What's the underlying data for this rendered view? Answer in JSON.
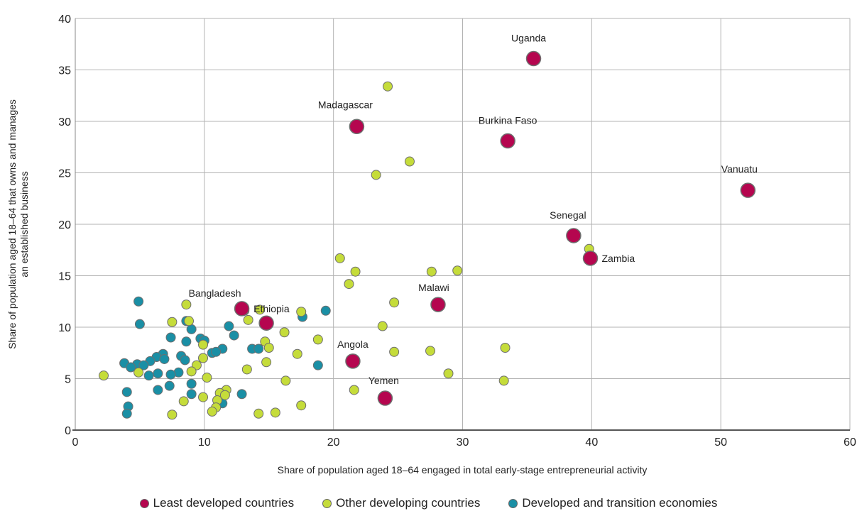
{
  "chart_data": {
    "type": "scatter",
    "xlabel": "Share of population aged 18–64 engaged in total early-stage entrepreneurial activity",
    "ylabel": [
      "Share of population aged 18–64 that owns and manages",
      "an established business"
    ],
    "xlim": [
      0,
      60
    ],
    "ylim": [
      0,
      40
    ],
    "xticks": [
      0,
      10,
      20,
      30,
      40,
      50,
      60
    ],
    "yticks": [
      0,
      5,
      10,
      15,
      20,
      25,
      30,
      35,
      40
    ],
    "grid": true,
    "legend_position": "bottom",
    "series": [
      {
        "name": "Least developed countries",
        "color": "#b5064f",
        "points": [
          {
            "x": 35.5,
            "y": 36.1,
            "label": "Uganda"
          },
          {
            "x": 21.8,
            "y": 29.5,
            "label": "Madagascar"
          },
          {
            "x": 33.5,
            "y": 28.1,
            "label": "Burkina Faso"
          },
          {
            "x": 52.1,
            "y": 23.3,
            "label": "Vanuatu"
          },
          {
            "x": 38.6,
            "y": 18.9,
            "label": "Senegal"
          },
          {
            "x": 39.9,
            "y": 16.7,
            "label": "Zambia"
          },
          {
            "x": 28.1,
            "y": 12.2,
            "label": "Malawi"
          },
          {
            "x": 12.9,
            "y": 11.8,
            "label": "Bangladesh"
          },
          {
            "x": 14.8,
            "y": 10.4,
            "label": "Ethiopia"
          },
          {
            "x": 21.5,
            "y": 6.7,
            "label": "Angola"
          },
          {
            "x": 24.0,
            "y": 3.1,
            "label": "Yemen"
          }
        ]
      },
      {
        "name": "Other developing countries",
        "color": "#c5dc3a",
        "points": [
          {
            "x": 24.2,
            "y": 33.4
          },
          {
            "x": 25.9,
            "y": 26.1
          },
          {
            "x": 23.3,
            "y": 24.8
          },
          {
            "x": 39.8,
            "y": 17.6
          },
          {
            "x": 20.5,
            "y": 16.7
          },
          {
            "x": 21.7,
            "y": 15.4
          },
          {
            "x": 27.6,
            "y": 15.4
          },
          {
            "x": 29.6,
            "y": 15.5
          },
          {
            "x": 21.2,
            "y": 14.2
          },
          {
            "x": 24.7,
            "y": 12.4
          },
          {
            "x": 8.6,
            "y": 12.2
          },
          {
            "x": 13.1,
            "y": 11.6
          },
          {
            "x": 14.3,
            "y": 11.7
          },
          {
            "x": 17.5,
            "y": 11.5
          },
          {
            "x": 7.5,
            "y": 10.5
          },
          {
            "x": 8.8,
            "y": 10.6
          },
          {
            "x": 13.4,
            "y": 10.7
          },
          {
            "x": 23.8,
            "y": 10.1
          },
          {
            "x": 16.2,
            "y": 9.5
          },
          {
            "x": 18.8,
            "y": 8.8
          },
          {
            "x": 9.9,
            "y": 8.3
          },
          {
            "x": 14.7,
            "y": 8.6
          },
          {
            "x": 15.0,
            "y": 8.0
          },
          {
            "x": 33.3,
            "y": 8.0
          },
          {
            "x": 24.7,
            "y": 7.6
          },
          {
            "x": 27.5,
            "y": 7.7
          },
          {
            "x": 17.2,
            "y": 7.4
          },
          {
            "x": 9.9,
            "y": 7.0
          },
          {
            "x": 14.8,
            "y": 6.6
          },
          {
            "x": 9.4,
            "y": 6.3
          },
          {
            "x": 2.2,
            "y": 5.3
          },
          {
            "x": 4.9,
            "y": 5.6
          },
          {
            "x": 9.0,
            "y": 5.7
          },
          {
            "x": 13.3,
            "y": 5.9
          },
          {
            "x": 28.9,
            "y": 5.5
          },
          {
            "x": 10.2,
            "y": 5.1
          },
          {
            "x": 16.3,
            "y": 4.8
          },
          {
            "x": 33.2,
            "y": 4.8
          },
          {
            "x": 11.7,
            "y": 3.9
          },
          {
            "x": 21.6,
            "y": 3.9
          },
          {
            "x": 11.2,
            "y": 3.6
          },
          {
            "x": 11.6,
            "y": 3.4
          },
          {
            "x": 9.9,
            "y": 3.2
          },
          {
            "x": 11.0,
            "y": 2.9
          },
          {
            "x": 8.4,
            "y": 2.8
          },
          {
            "x": 17.5,
            "y": 2.4
          },
          {
            "x": 10.9,
            "y": 2.2
          },
          {
            "x": 10.6,
            "y": 1.8
          },
          {
            "x": 15.5,
            "y": 1.7
          },
          {
            "x": 7.5,
            "y": 1.5
          },
          {
            "x": 14.2,
            "y": 1.6
          }
        ]
      },
      {
        "name": "Developed and transition economies",
        "color": "#1a8fa5",
        "points": [
          {
            "x": 4.9,
            "y": 12.5
          },
          {
            "x": 19.4,
            "y": 11.6
          },
          {
            "x": 17.6,
            "y": 11.0
          },
          {
            "x": 5.0,
            "y": 10.3
          },
          {
            "x": 11.9,
            "y": 10.1
          },
          {
            "x": 9.0,
            "y": 9.8
          },
          {
            "x": 8.6,
            "y": 10.6
          },
          {
            "x": 12.3,
            "y": 9.2
          },
          {
            "x": 7.4,
            "y": 9.0
          },
          {
            "x": 9.7,
            "y": 8.9
          },
          {
            "x": 10.0,
            "y": 8.7
          },
          {
            "x": 8.6,
            "y": 8.6
          },
          {
            "x": 11.4,
            "y": 7.9
          },
          {
            "x": 13.7,
            "y": 7.9
          },
          {
            "x": 14.2,
            "y": 7.9
          },
          {
            "x": 10.6,
            "y": 7.5
          },
          {
            "x": 10.9,
            "y": 7.6
          },
          {
            "x": 6.8,
            "y": 7.4
          },
          {
            "x": 8.2,
            "y": 7.2
          },
          {
            "x": 6.3,
            "y": 7.1
          },
          {
            "x": 6.9,
            "y": 6.9
          },
          {
            "x": 8.5,
            "y": 6.8
          },
          {
            "x": 5.8,
            "y": 6.7
          },
          {
            "x": 3.8,
            "y": 6.5
          },
          {
            "x": 4.8,
            "y": 6.4
          },
          {
            "x": 5.3,
            "y": 6.3
          },
          {
            "x": 4.3,
            "y": 6.1
          },
          {
            "x": 18.8,
            "y": 6.3
          },
          {
            "x": 6.4,
            "y": 5.5
          },
          {
            "x": 8.0,
            "y": 5.6
          },
          {
            "x": 5.7,
            "y": 5.3
          },
          {
            "x": 7.4,
            "y": 5.4
          },
          {
            "x": 9.0,
            "y": 4.5
          },
          {
            "x": 7.3,
            "y": 4.3
          },
          {
            "x": 6.4,
            "y": 3.9
          },
          {
            "x": 4.0,
            "y": 3.7
          },
          {
            "x": 9.0,
            "y": 3.5
          },
          {
            "x": 12.9,
            "y": 3.5
          },
          {
            "x": 11.4,
            "y": 2.6
          },
          {
            "x": 4.1,
            "y": 2.3
          },
          {
            "x": 4.0,
            "y": 1.6
          }
        ]
      }
    ]
  }
}
